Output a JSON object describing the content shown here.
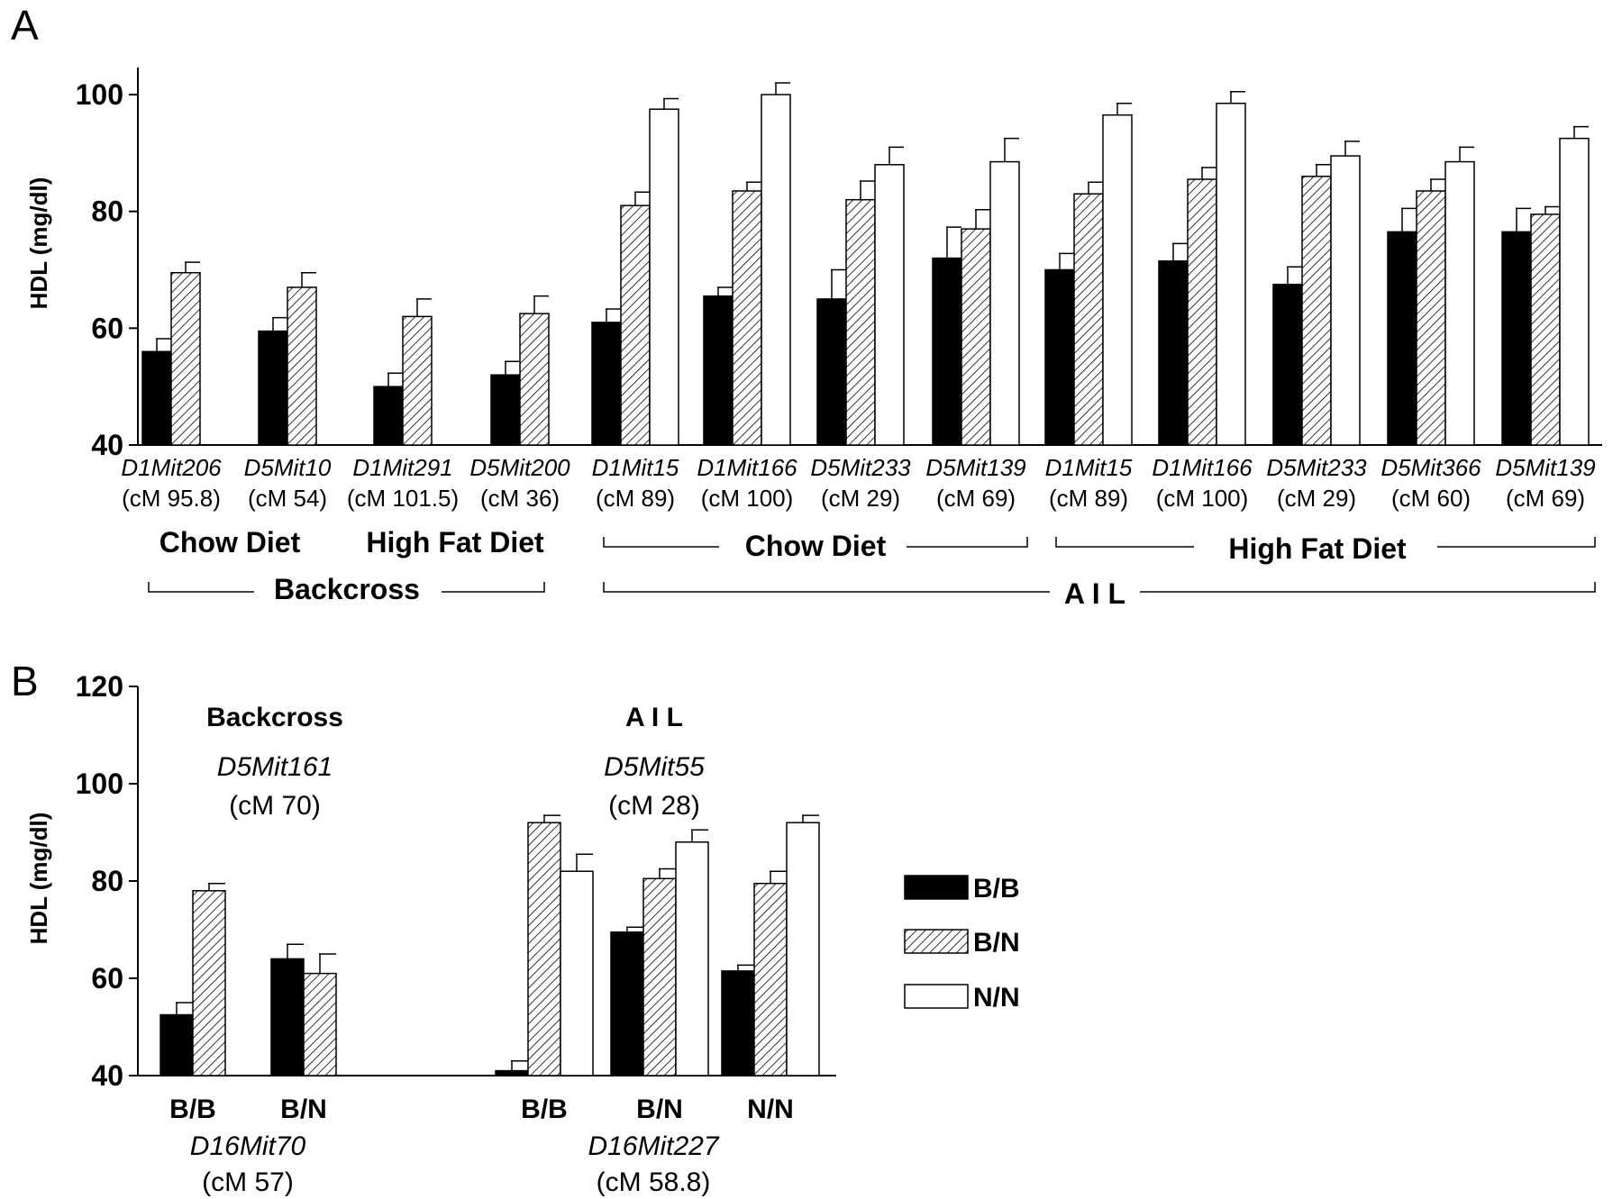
{
  "colors": {
    "B/B": "#000000",
    "B/N": "hatch",
    "N/N": "#ffffff",
    "axis": "#000000"
  },
  "legend": {
    "entries": [
      "B/B",
      "B/N",
      "N/N"
    ],
    "placement": "right of panel B"
  },
  "chart_data": [
    {
      "type": "bar",
      "panel_label": "A",
      "ylabel": "HDL (mg/dl)",
      "ylim": [
        40,
        100
      ],
      "yticks": [
        40,
        60,
        80,
        100
      ],
      "series_names": [
        "B/B",
        "B/N",
        "N/N"
      ],
      "groups": [
        {
          "marker": "D1Mit206",
          "cm": "(cM 95.8)",
          "values": [
            56,
            69.5,
            null
          ],
          "errors": [
            2.2,
            1.8,
            null
          ]
        },
        {
          "marker": "D5Mit10",
          "cm": "(cM 54)",
          "values": [
            59.5,
            67,
            null
          ],
          "errors": [
            2.3,
            2.5,
            null
          ]
        },
        {
          "marker": "D1Mit291",
          "cm": "(cM 101.5)",
          "values": [
            50,
            62,
            null
          ],
          "errors": [
            2.3,
            3,
            null
          ]
        },
        {
          "marker": "D5Mit200",
          "cm": "(cM 36)",
          "values": [
            52,
            62.5,
            null
          ],
          "errors": [
            2.3,
            3,
            null
          ]
        },
        {
          "marker": "D1Mit15",
          "cm": "(cM 89)",
          "values": [
            61,
            81,
            97.5
          ],
          "errors": [
            2.3,
            2.3,
            1.8
          ]
        },
        {
          "marker": "D1Mit166",
          "cm": "(cM 100)",
          "values": [
            65.5,
            83.5,
            100
          ],
          "errors": [
            1.5,
            1.5,
            2
          ]
        },
        {
          "marker": "D5Mit233",
          "cm": "(cM 29)",
          "values": [
            65,
            82,
            88
          ],
          "errors": [
            5,
            3.2,
            3
          ]
        },
        {
          "marker": "D5Mit139",
          "cm": "(cM 69)",
          "values": [
            72,
            77,
            88.5
          ],
          "errors": [
            5.3,
            3.3,
            4
          ]
        },
        {
          "marker": "D1Mit15",
          "cm": "(cM 89)",
          "values": [
            70,
            83,
            96.5
          ],
          "errors": [
            2.8,
            2,
            2
          ]
        },
        {
          "marker": "D1Mit166",
          "cm": "(cM 100)",
          "values": [
            71.5,
            85.5,
            98.5
          ],
          "errors": [
            3,
            2,
            2
          ]
        },
        {
          "marker": "D5Mit233",
          "cm": "(cM 29)",
          "values": [
            67.5,
            86,
            89.5
          ],
          "errors": [
            3,
            2,
            2.5
          ]
        },
        {
          "marker": "D5Mit366",
          "cm": "(cM 60)",
          "values": [
            76.5,
            83.5,
            88.5
          ],
          "errors": [
            4,
            2,
            2.5
          ]
        },
        {
          "marker": "D5Mit139",
          "cm": "(cM 69)",
          "values": [
            76.5,
            79.5,
            92.5
          ],
          "errors": [
            4,
            1.3,
            2
          ]
        }
      ],
      "diet_labels": [
        "Chow Diet",
        "High Fat Diet",
        "Chow Diet",
        "High Fat Diet"
      ],
      "population_labels": [
        "Backcross",
        "A I L"
      ]
    },
    {
      "type": "bar",
      "panel_label": "B",
      "ylabel": "HDL (mg/dl)",
      "ylim": [
        40,
        120
      ],
      "yticks": [
        40,
        60,
        80,
        100,
        120
      ],
      "series_names": [
        "B/B",
        "B/N",
        "N/N"
      ],
      "annotations": [
        {
          "title": "Backcross",
          "marker": "D5Mit161",
          "cm": "(cM 70)"
        },
        {
          "title": "A I L",
          "marker": "D5Mit55",
          "cm": "(cM 28)"
        }
      ],
      "groups": [
        {
          "label": "B/B",
          "values": [
            52.5,
            78,
            null
          ],
          "errors": [
            2.5,
            1.5,
            null
          ]
        },
        {
          "label": "B/N",
          "values": [
            64,
            61,
            null
          ],
          "errors": [
            3,
            4,
            null
          ]
        },
        {
          "label": "B/B",
          "values": [
            41,
            92,
            82
          ],
          "errors": [
            2,
            1.5,
            3.5
          ]
        },
        {
          "label": "B/N",
          "values": [
            69.5,
            80.5,
            88
          ],
          "errors": [
            1,
            2,
            2.5
          ]
        },
        {
          "label": "N/N",
          "values": [
            61.5,
            79.5,
            92
          ],
          "errors": [
            1.2,
            2.5,
            1.5
          ]
        }
      ],
      "xlabels": [
        {
          "marker": "D16Mit70",
          "cm": "(cM 57)"
        },
        {
          "marker": "D16Mit227",
          "cm": "(cM 58.8)"
        }
      ]
    }
  ]
}
